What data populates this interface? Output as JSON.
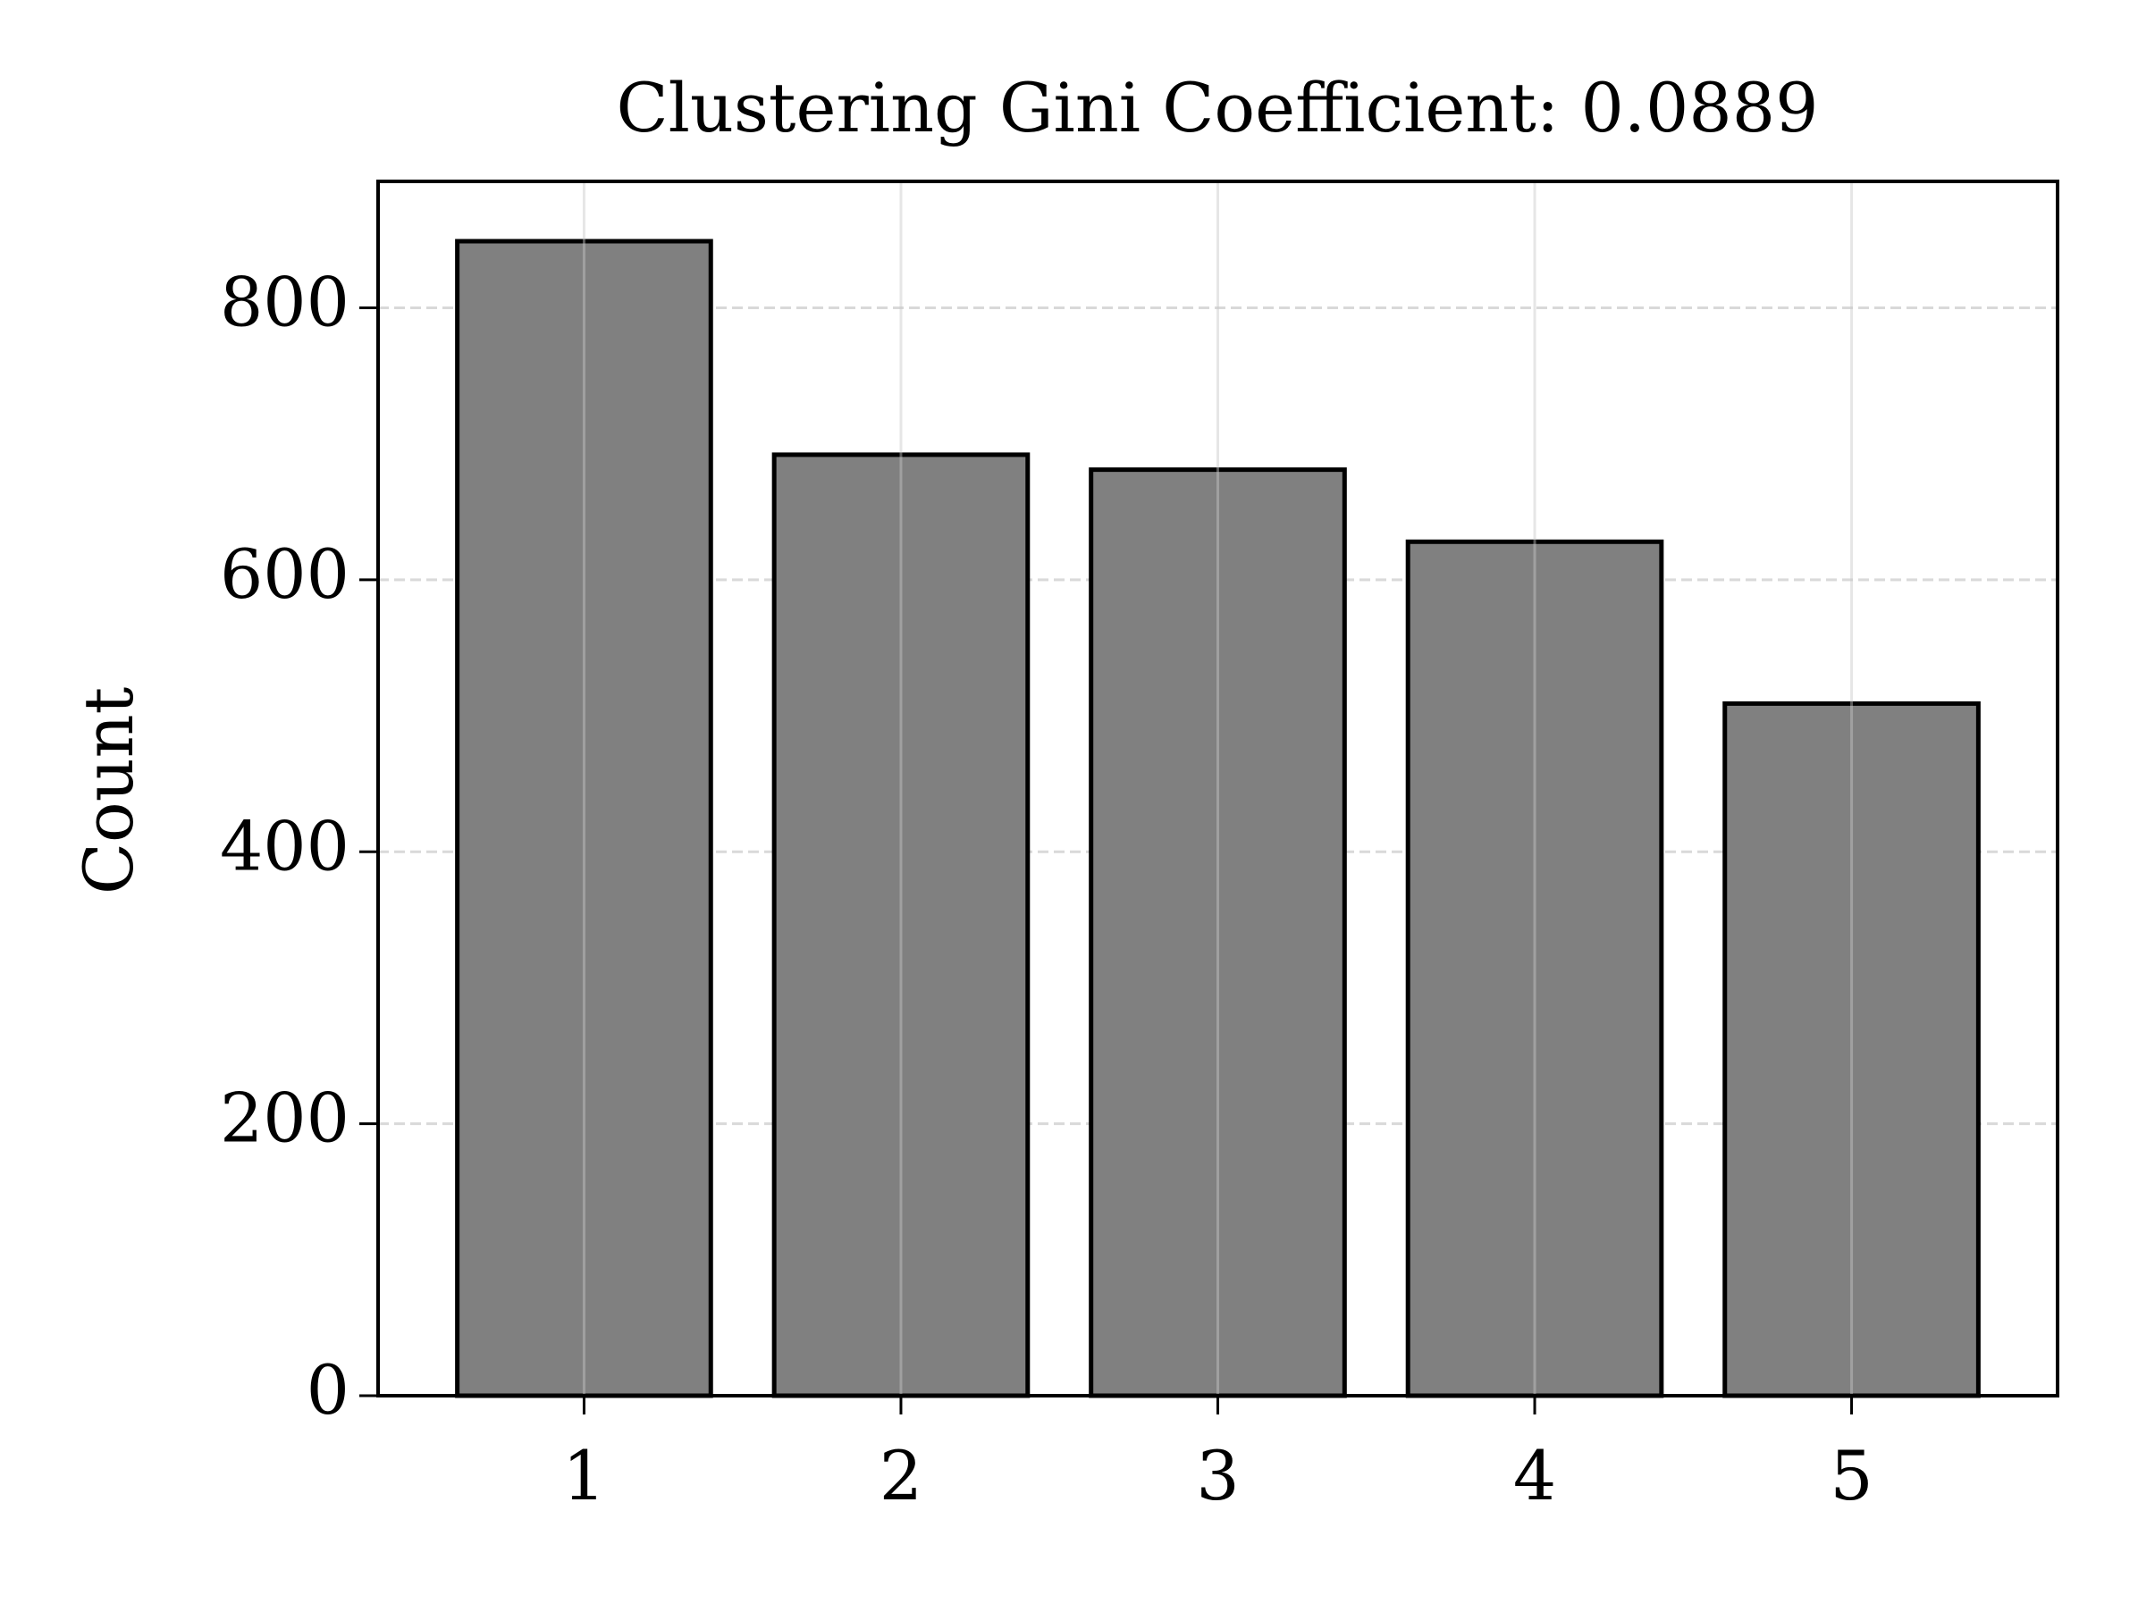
{
  "chart_data": {
    "type": "bar",
    "title": "Clustering Gini Coefficient: 0.0889",
    "y_label": "Count",
    "x": [
      1,
      2,
      3,
      4,
      5
    ],
    "values": [
      849,
      692,
      681,
      628,
      509
    ],
    "color": "#808080",
    "edgecolor": "#000000",
    "xlim": [
      0.35,
      5.65
    ],
    "xticks": [
      1,
      2,
      3,
      4,
      5
    ],
    "ylim": [
      0,
      893
    ],
    "yticks": [
      0,
      200,
      400,
      600,
      800
    ],
    "grid": true
  }
}
